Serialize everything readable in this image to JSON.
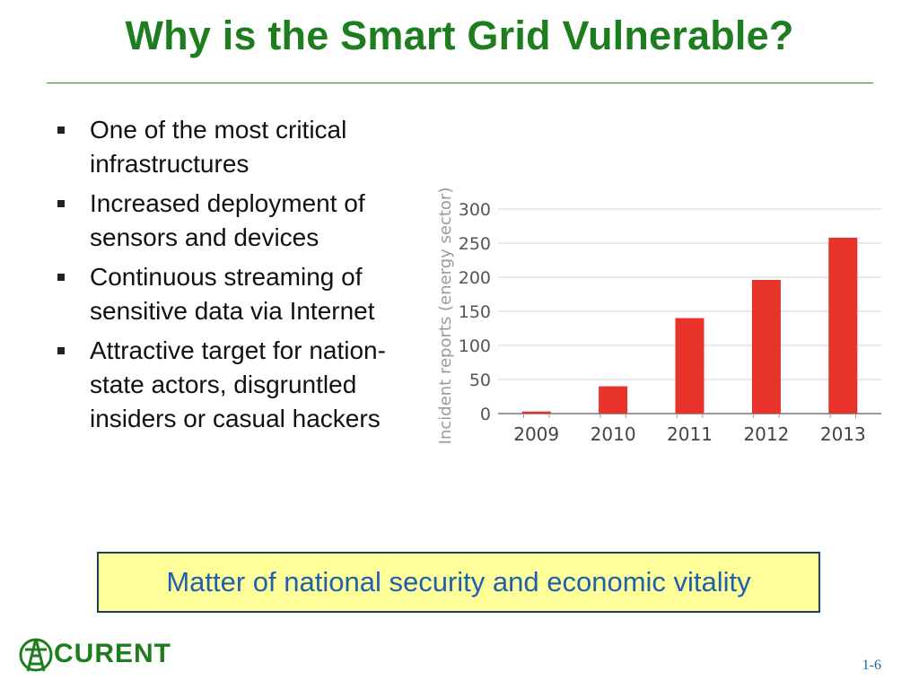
{
  "slide": {
    "title": "Why is the Smart Grid Vulnerable?",
    "bullets": [
      "One of the most critical infrastructures",
      "Increased deployment of sensors and devices",
      "Continuous streaming of sensitive data via Internet",
      "Attractive target for nation-state actors, disgruntled insiders or casual hackers"
    ],
    "callout": "Matter of national security and economic vitality",
    "logo_text": "CURENT",
    "page_number": "1-6"
  },
  "colors": {
    "title": "#1e7d1e",
    "bar": "#e8332a",
    "callout_bg": "#ffff99",
    "callout_text": "#1f5faf"
  },
  "chart_data": {
    "type": "bar",
    "categories": [
      "2009",
      "2010",
      "2011",
      "2012",
      "2013"
    ],
    "values": [
      3,
      40,
      140,
      196,
      258
    ],
    "title": "",
    "xlabel": "",
    "ylabel": "Incident reports (energy sector)",
    "ylim": [
      0,
      300
    ],
    "yticks": [
      0,
      50,
      100,
      150,
      200,
      250,
      300
    ],
    "grid": true
  }
}
